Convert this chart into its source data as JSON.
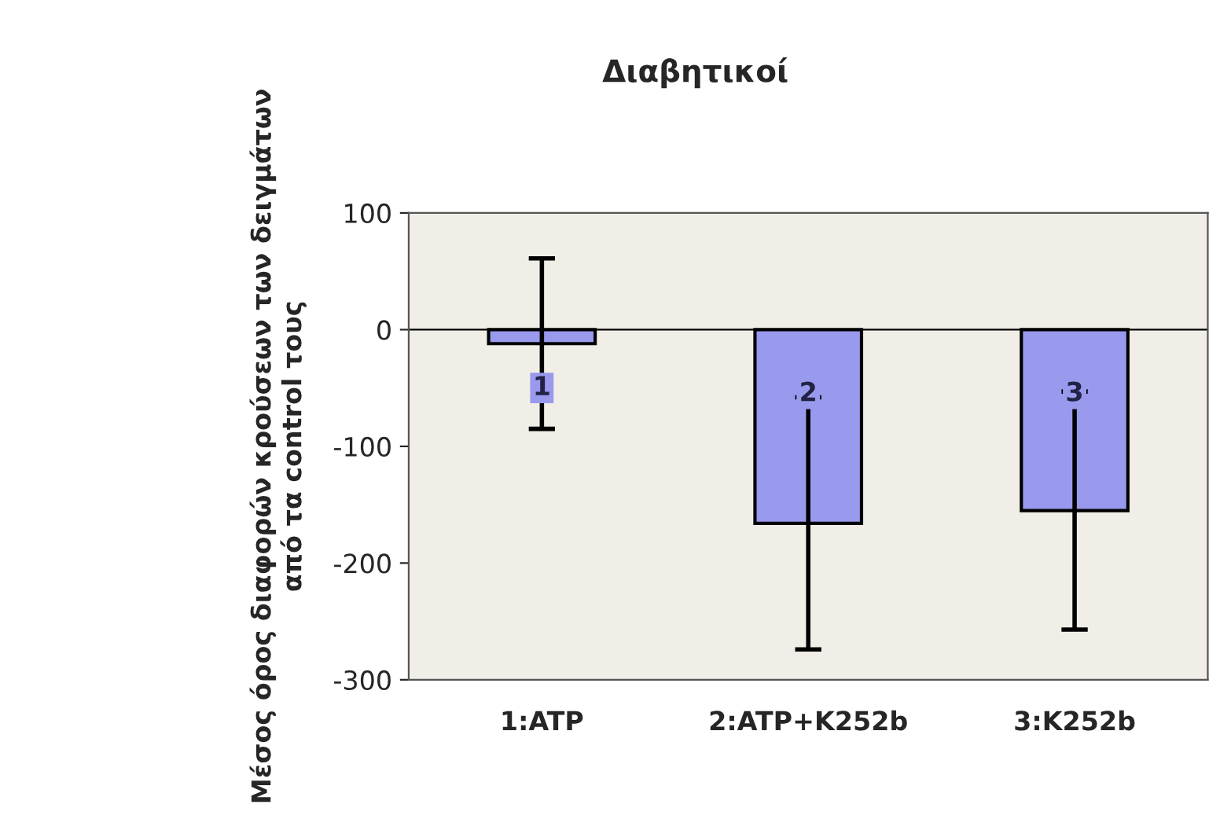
{
  "chart_data": {
    "type": "bar",
    "title": "Διαβητικοί",
    "ylabel": "Μέσος όρος διαφορών κρούσεων των δειγμάτων από τα control τους",
    "categories": [
      "1:ATP",
      "2:ATP+K252b",
      "3:K252b"
    ],
    "values": [
      -12,
      -166,
      -155
    ],
    "errors": [
      73,
      108,
      102
    ],
    "color": "#9999ee",
    "ylim": [
      -300,
      100
    ],
    "yticks": [
      -300,
      -200,
      -100,
      0,
      100
    ],
    "grid": false,
    "ref_lines": [
      {
        "axis": "y",
        "value": 0,
        "color": "#000000"
      }
    ],
    "annotations": [
      {
        "text": "1",
        "x": "1:ATP",
        "y": -50
      },
      {
        "text": "2",
        "x": "2:ATP+K252b",
        "y": -55
      },
      {
        "text": "3",
        "x": "3:K252b",
        "y": -55
      }
    ]
  }
}
